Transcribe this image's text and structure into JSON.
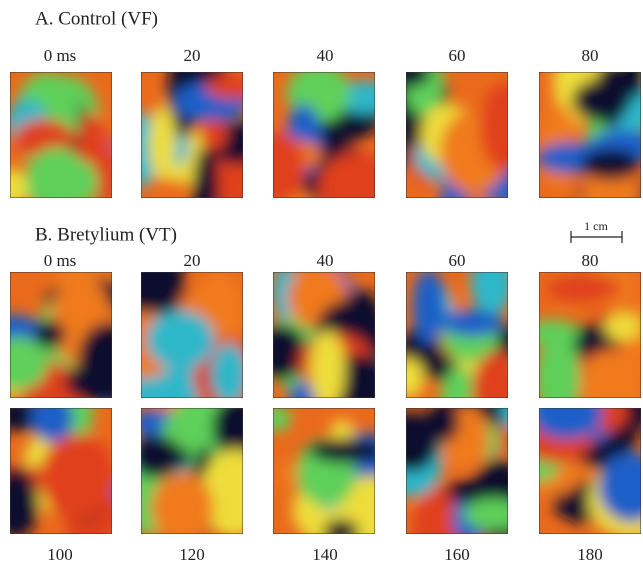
{
  "panel_a": {
    "title": "A.  Control (VF)",
    "time_labels": [
      "0 ms",
      "20",
      "40",
      "60",
      "80"
    ]
  },
  "panel_b": {
    "title": "B. Bretylium (VT)",
    "scale_bar": "1 cm",
    "time_labels_top": [
      "0 ms",
      "20",
      "40",
      "60",
      "80"
    ],
    "time_labels_bottom": [
      "100",
      "120",
      "140",
      "160",
      "180"
    ]
  }
}
